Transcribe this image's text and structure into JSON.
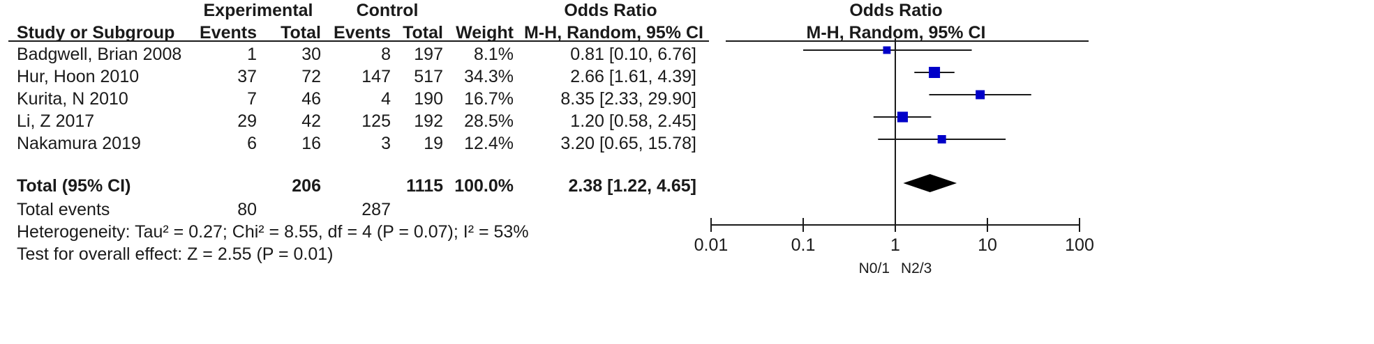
{
  "table": {
    "group_experimental": "Experimental",
    "group_control": "Control",
    "group_or": "Odds Ratio",
    "col_study": "Study or Subgroup",
    "col_events": "Events",
    "col_total": "Total",
    "col_weight": "Weight",
    "col_method": "M-H, Random, 95% CI",
    "rows": [
      {
        "study": "Badgwell, Brian 2008",
        "e_events": "1",
        "e_total": "30",
        "c_events": "8",
        "c_total": "197",
        "weight": "8.1%",
        "ci": "0.81 [0.10, 6.76]"
      },
      {
        "study": "Hur, Hoon 2010",
        "e_events": "37",
        "e_total": "72",
        "c_events": "147",
        "c_total": "517",
        "weight": "34.3%",
        "ci": "2.66 [1.61, 4.39]"
      },
      {
        "study": "Kurita, N 2010",
        "e_events": "7",
        "e_total": "46",
        "c_events": "4",
        "c_total": "190",
        "weight": "16.7%",
        "ci": "8.35 [2.33, 29.90]"
      },
      {
        "study": "Li, Z 2017",
        "e_events": "29",
        "e_total": "42",
        "c_events": "125",
        "c_total": "192",
        "weight": "28.5%",
        "ci": "1.20 [0.58, 2.45]"
      },
      {
        "study": "Nakamura 2019",
        "e_events": "6",
        "e_total": "16",
        "c_events": "3",
        "c_total": "19",
        "weight": "12.4%",
        "ci": "3.20 [0.65, 15.78]"
      }
    ],
    "total": {
      "label": "Total (95% CI)",
      "e_total": "206",
      "c_total": "1115",
      "weight": "100.0%",
      "ci": "2.38 [1.22, 4.65]"
    },
    "total_events": {
      "label": "Total events",
      "e_events": "80",
      "c_events": "287"
    },
    "heterogeneity": "Heterogeneity: Tau² = 0.27; Chi² = 8.55, df = 4 (P = 0.07); I² = 53%",
    "overall_effect": "Test for overall effect: Z = 2.55 (P = 0.01)"
  },
  "chart_data": {
    "type": "scatter",
    "title": "Odds Ratio",
    "subtitle": "M-H, Random, 95% CI",
    "x_scale": "log",
    "xlim": [
      0.01,
      100
    ],
    "x_ticks": [
      "0.01",
      "0.1",
      "1",
      "10",
      "100"
    ],
    "favours_left": "N0/1",
    "favours_right": "N2/3",
    "null_line": 1,
    "studies": [
      {
        "or": 0.81,
        "lo": 0.1,
        "hi": 6.76,
        "weight": 8.1
      },
      {
        "or": 2.66,
        "lo": 1.61,
        "hi": 4.39,
        "weight": 34.3
      },
      {
        "or": 8.35,
        "lo": 2.33,
        "hi": 29.9,
        "weight": 16.7
      },
      {
        "or": 1.2,
        "lo": 0.58,
        "hi": 2.45,
        "weight": 28.5
      },
      {
        "or": 3.2,
        "lo": 0.65,
        "hi": 15.78,
        "weight": 12.4
      }
    ],
    "pooled": {
      "or": 2.38,
      "lo": 1.22,
      "hi": 4.65
    },
    "colors": {
      "marker": "#0000c8",
      "diamond": "#000000",
      "line": "#1a1a1a"
    }
  }
}
